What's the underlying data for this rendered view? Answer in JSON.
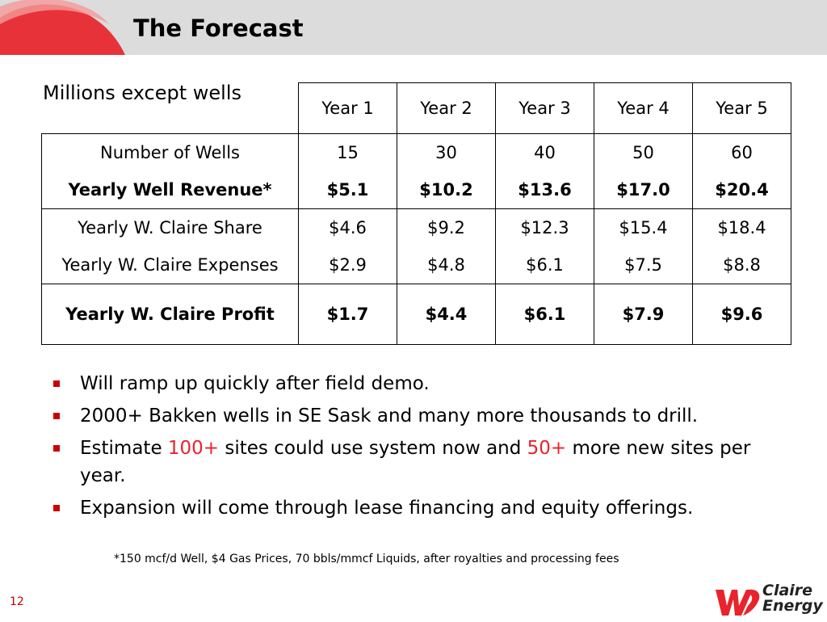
{
  "slide": {
    "title": "The Forecast",
    "units_label": "Millions except wells",
    "page_number": "12",
    "accent_color": "#cc0000",
    "header_bg": "#dcdcdc"
  },
  "table": {
    "years": [
      "Year 1",
      "Year 2",
      "Year 3",
      "Year 4",
      "Year 5"
    ],
    "rows": [
      {
        "label": "Number of Wells",
        "values": [
          "15",
          "30",
          "40",
          "50",
          "60"
        ]
      },
      {
        "label": "Yearly Well Revenue*",
        "values": [
          "$5.1",
          "$10.2",
          "$13.6",
          "$17.0",
          "$20.4"
        ]
      },
      {
        "label": "Yearly W. Claire Share",
        "values": [
          "$4.6",
          "$9.2",
          "$12.3",
          "$15.4",
          "$18.4"
        ]
      },
      {
        "label": "Yearly W. Claire Expenses",
        "values": [
          "$2.9",
          "$4.8",
          "$6.1",
          "$7.5",
          "$8.8"
        ]
      },
      {
        "label": "Yearly W. Claire Profit",
        "values": [
          "$1.7",
          "$4.4",
          "$6.1",
          "$7.9",
          "$9.6"
        ]
      }
    ]
  },
  "bullets": {
    "b1": "Will ramp up quickly after field demo.",
    "b2": "2000+ Bakken wells in SE Sask and many more thousands to drill.",
    "b3_pre": "Estimate ",
    "b3_hl1": "100+",
    "b3_mid": " sites could use system now and ",
    "b3_hl2": "50+",
    "b3_post": " more new sites per year.",
    "b4": "Expansion will come through lease financing and equity offerings."
  },
  "footnote": "*150 mcf/d Well, $4 Gas Prices, 70 bbls/mmcf Liquids, after royalties and processing fees",
  "logo": {
    "line1": "Claire",
    "line2": "Energy"
  }
}
